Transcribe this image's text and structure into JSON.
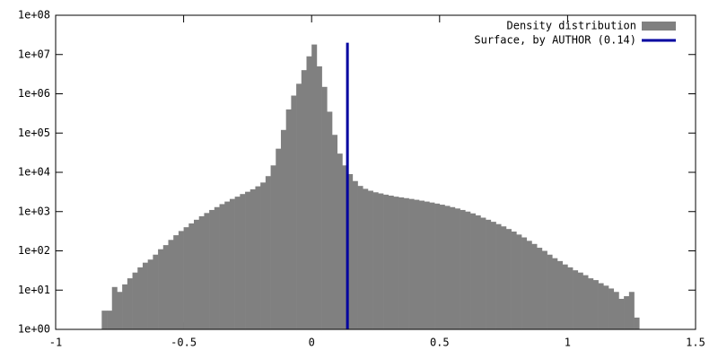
{
  "chart_data": {
    "type": "histogram",
    "log_y": true,
    "xlim": [
      -1,
      1.5
    ],
    "ylim": [
      1,
      100000000
    ],
    "xticks": [
      -1,
      -0.5,
      0,
      0.5,
      1,
      1.5
    ],
    "yticks": [
      {
        "value": 1,
        "label": "1e+00"
      },
      {
        "value": 10,
        "label": "1e+01"
      },
      {
        "value": 100,
        "label": "1e+02"
      },
      {
        "value": 1000,
        "label": "1e+03"
      },
      {
        "value": 10000,
        "label": "1e+04"
      },
      {
        "value": 100000,
        "label": "1e+05"
      },
      {
        "value": 1000000,
        "label": "1e+06"
      },
      {
        "value": 10000000,
        "label": "1e+07"
      },
      {
        "value": 100000000,
        "label": "1e+08"
      }
    ],
    "legend": "top-right",
    "series": [
      {
        "name": "Density distribution",
        "color": "#808080",
        "bins": [
          -0.82,
          -0.8,
          -0.78,
          -0.76,
          -0.74,
          -0.72,
          -0.7,
          -0.68,
          -0.66,
          -0.64,
          -0.62,
          -0.6,
          -0.58,
          -0.56,
          -0.54,
          -0.52,
          -0.5,
          -0.48,
          -0.46,
          -0.44,
          -0.42,
          -0.4,
          -0.38,
          -0.36,
          -0.34,
          -0.32,
          -0.3,
          -0.28,
          -0.26,
          -0.24,
          -0.22,
          -0.2,
          -0.18,
          -0.16,
          -0.14,
          -0.12,
          -0.1,
          -0.08,
          -0.06,
          -0.04,
          -0.02,
          0.0,
          0.02,
          0.04,
          0.06,
          0.08,
          0.1,
          0.12,
          0.14,
          0.16,
          0.18,
          0.2,
          0.22,
          0.24,
          0.26,
          0.28,
          0.3,
          0.32,
          0.34,
          0.36,
          0.38,
          0.4,
          0.42,
          0.44,
          0.46,
          0.48,
          0.5,
          0.52,
          0.54,
          0.56,
          0.58,
          0.6,
          0.62,
          0.64,
          0.66,
          0.68,
          0.7,
          0.72,
          0.74,
          0.76,
          0.78,
          0.8,
          0.82,
          0.84,
          0.86,
          0.88,
          0.9,
          0.92,
          0.94,
          0.96,
          0.98,
          1.0,
          1.02,
          1.04,
          1.06,
          1.08,
          1.1,
          1.12,
          1.14,
          1.16,
          1.18,
          1.2,
          1.22,
          1.24,
          1.26,
          1.28
        ],
        "values": [
          3,
          3,
          12,
          9,
          14,
          20,
          28,
          38,
          50,
          60,
          80,
          110,
          140,
          190,
          250,
          320,
          400,
          500,
          620,
          760,
          920,
          1100,
          1300,
          1550,
          1800,
          2100,
          2400,
          2800,
          3200,
          3700,
          4400,
          5500,
          8000,
          15000,
          40000,
          120000,
          400000,
          900000,
          1800000,
          4000000,
          9000000,
          18000000,
          5000000,
          1500000,
          350000,
          90000,
          30000,
          15000,
          9000,
          6000,
          4500,
          3800,
          3400,
          3100,
          2900,
          2700,
          2550,
          2400,
          2300,
          2200,
          2100,
          2000,
          1900,
          1800,
          1700,
          1600,
          1500,
          1400,
          1300,
          1200,
          1100,
          1000,
          900,
          800,
          700,
          620,
          550,
          480,
          420,
          360,
          310,
          260,
          220,
          180,
          150,
          120,
          100,
          80,
          65,
          55,
          45,
          38,
          32,
          28,
          24,
          20,
          18,
          15,
          13,
          11,
          9,
          6,
          7,
          9,
          2
        ]
      },
      {
        "name": "Surface, by AUTHOR (0.14)",
        "color": "#0000a0",
        "x": 0.14,
        "y_range": [
          1,
          20000000
        ]
      }
    ]
  }
}
